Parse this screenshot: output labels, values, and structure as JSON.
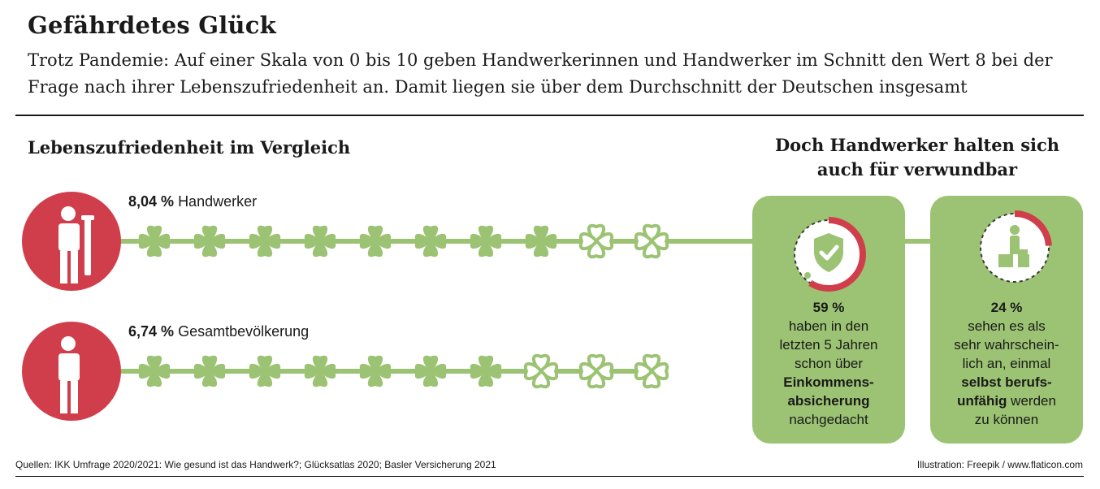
{
  "title": "Gefährdetes Glück",
  "subtitle": "Trotz Pandemie: Auf einer Skala von 0 bis 10 geben Handwerkerinnen und Handwerker im Schnitt den Wert 8 bei der Frage nach ihrer Lebenszufriedenheit an. Damit liegen sie über dem Durchschnitt der Deutschen insgesamt",
  "left_heading": "Lebenszufriedenheit im Vergleich",
  "right_heading": "Doch Handwerker halten sich auch für verwundbar",
  "colors": {
    "clover": "#9cc373",
    "clover_outline": "#9cc373",
    "accent_red": "#d13e4b",
    "card": "#9cc373",
    "line": "#9cc373"
  },
  "chart_data": [
    {
      "type": "pictogram",
      "title": "Lebenszufriedenheit im Vergleich",
      "scale_max": 10,
      "series": [
        {
          "name": "Handwerker",
          "value": 8.04,
          "value_label": "8,04 %",
          "icon": "craftsman-with-tool-icon",
          "filled_clovers": 8,
          "outlined_clovers": 2
        },
        {
          "name": "Gesamtbevölkerung",
          "value": 6.74,
          "value_label": "6,74 %",
          "icon": "person-icon",
          "filled_clovers": 7,
          "outlined_clovers": 3
        }
      ]
    },
    {
      "type": "donut",
      "series": [
        {
          "value": 59,
          "value_label": "59 %",
          "icon": "shield-check-icon"
        },
        {
          "value": 24,
          "value_label": "24 %",
          "icon": "disabled-worker-icon"
        }
      ]
    }
  ],
  "cards": [
    {
      "pct": "59 %",
      "lines": [
        "haben in den",
        "letzten 5 Jahren",
        "schon über"
      ],
      "bold_lines": [
        "Einkommens-",
        "absicherung"
      ],
      "tail": "nachgedacht"
    },
    {
      "pct": "24 %",
      "lines": [
        "sehen es als",
        "sehr wahrschein-",
        "lich an, einmal"
      ],
      "bold_lines": [
        "selbst berufs-"
      ],
      "mixed": {
        "bold": "unfähig",
        "rest": " werden"
      },
      "tail": "zu können"
    }
  ],
  "source": "Quellen: IKK Umfrage 2020/2021: Wie gesund ist das Handwerk?; Glücksatlas 2020; Basler Versicherung 2021",
  "credit": "Illustration: Freepik / www.flaticon.com"
}
